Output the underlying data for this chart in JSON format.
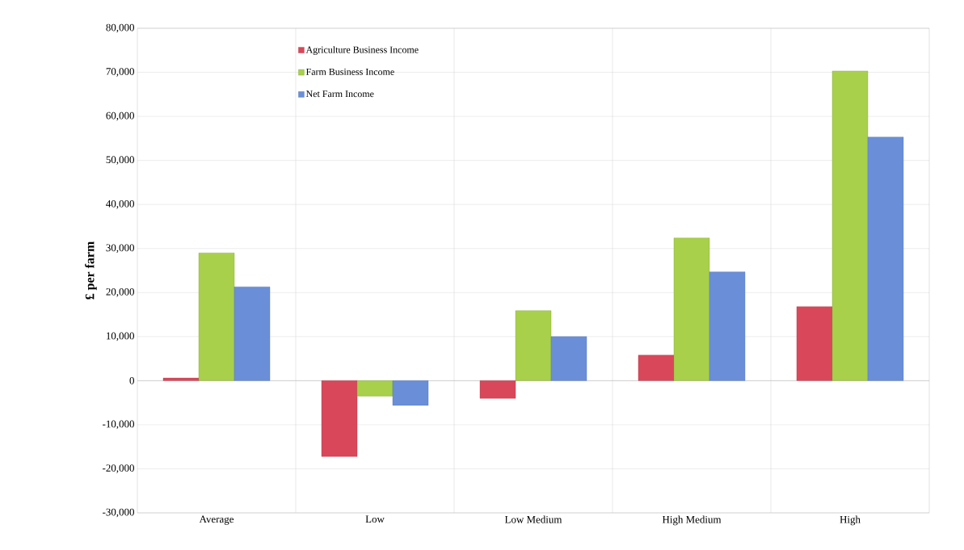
{
  "chart_data": {
    "type": "bar",
    "ylabel": "£ per farm",
    "categories": [
      "Average",
      "Low",
      "Low Medium",
      "High Medium",
      "High"
    ],
    "series": [
      {
        "name": "Agriculture Business Income",
        "color": "#d9485a",
        "values": [
          600,
          -17200,
          -4000,
          5800,
          16800
        ]
      },
      {
        "name": "Farm Business Income",
        "color": "#a8d04a",
        "values": [
          29000,
          -3500,
          15900,
          32400,
          70300
        ]
      },
      {
        "name": "Net Farm Income",
        "color": "#6a8fd8",
        "values": [
          21300,
          -5600,
          10000,
          24700,
          55300
        ]
      }
    ],
    "ylim": [
      -30000,
      80000
    ],
    "yticks": [
      {
        "value": -30000,
        "label": "-30,000"
      },
      {
        "value": -20000,
        "label": "-20,000"
      },
      {
        "value": -10000,
        "label": "-10,000"
      },
      0,
      {
        "value": 10000,
        "label": "10,000"
      },
      {
        "value": 20000,
        "label": "20,000"
      },
      {
        "value": 30000,
        "label": "30,000"
      },
      {
        "value": 40000,
        "label": "40,000"
      },
      {
        "value": 50000,
        "label": "50,000"
      },
      {
        "value": 60000,
        "label": "60,000"
      },
      {
        "value": 70000,
        "label": "70,000"
      },
      {
        "value": 80000,
        "label": "80,000"
      }
    ],
    "grid": true,
    "legend": "top left"
  }
}
